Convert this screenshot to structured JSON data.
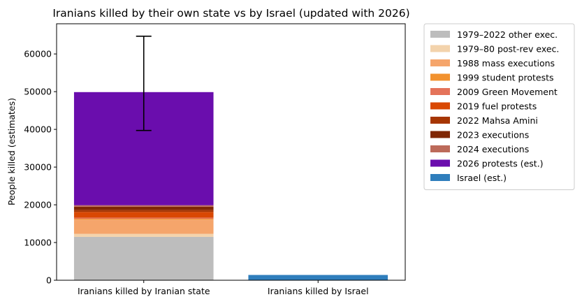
{
  "chart_data": {
    "type": "bar",
    "stacked": true,
    "title": "Iranians killed by their own state vs by Israel (updated with 2026)",
    "xlabel": "",
    "ylabel": "People killed (estimates)",
    "ylim": [
      0,
      68000
    ],
    "yticks": [
      0,
      10000,
      20000,
      30000,
      40000,
      50000,
      60000
    ],
    "categories": [
      "Iranians killed by Iranian state",
      "Iranians killed by Israel"
    ],
    "grid": false,
    "legend_position": "outside-right",
    "series": [
      {
        "name": "1979–2022 other exec.",
        "color": "#bdbdbd",
        "values": [
          11500,
          0
        ]
      },
      {
        "name": "1979–80 post-rev exec.",
        "color": "#f3d3ac",
        "values": [
          800,
          0
        ]
      },
      {
        "name": "1988 mass executions",
        "color": "#f5a56b",
        "values": [
          3800,
          0
        ]
      },
      {
        "name": "1999 student protests",
        "color": "#f2922f",
        "values": [
          200,
          0
        ]
      },
      {
        "name": "2009 Green Movement",
        "color": "#e4735a",
        "values": [
          300,
          0
        ]
      },
      {
        "name": "2019 fuel protests",
        "color": "#d94803",
        "values": [
          1500,
          0
        ]
      },
      {
        "name": "2022 Mahsa Amini",
        "color": "#a63603",
        "values": [
          550,
          0
        ]
      },
      {
        "name": "2023 executions",
        "color": "#7f2704",
        "values": [
          830,
          0
        ]
      },
      {
        "name": "2024 executions",
        "color": "#bc6a5a",
        "values": [
          400,
          0
        ]
      },
      {
        "name": "2026 protests (est.)",
        "color": "#6a0dad",
        "values": [
          30000,
          0
        ]
      },
      {
        "name": "Israel (est.)",
        "color": "#2f7ebc",
        "values": [
          0,
          1400
        ]
      }
    ],
    "error_bar": {
      "category_index": 0,
      "center": 49700,
      "low": 39700,
      "high": 64700,
      "color": "#000000"
    }
  }
}
